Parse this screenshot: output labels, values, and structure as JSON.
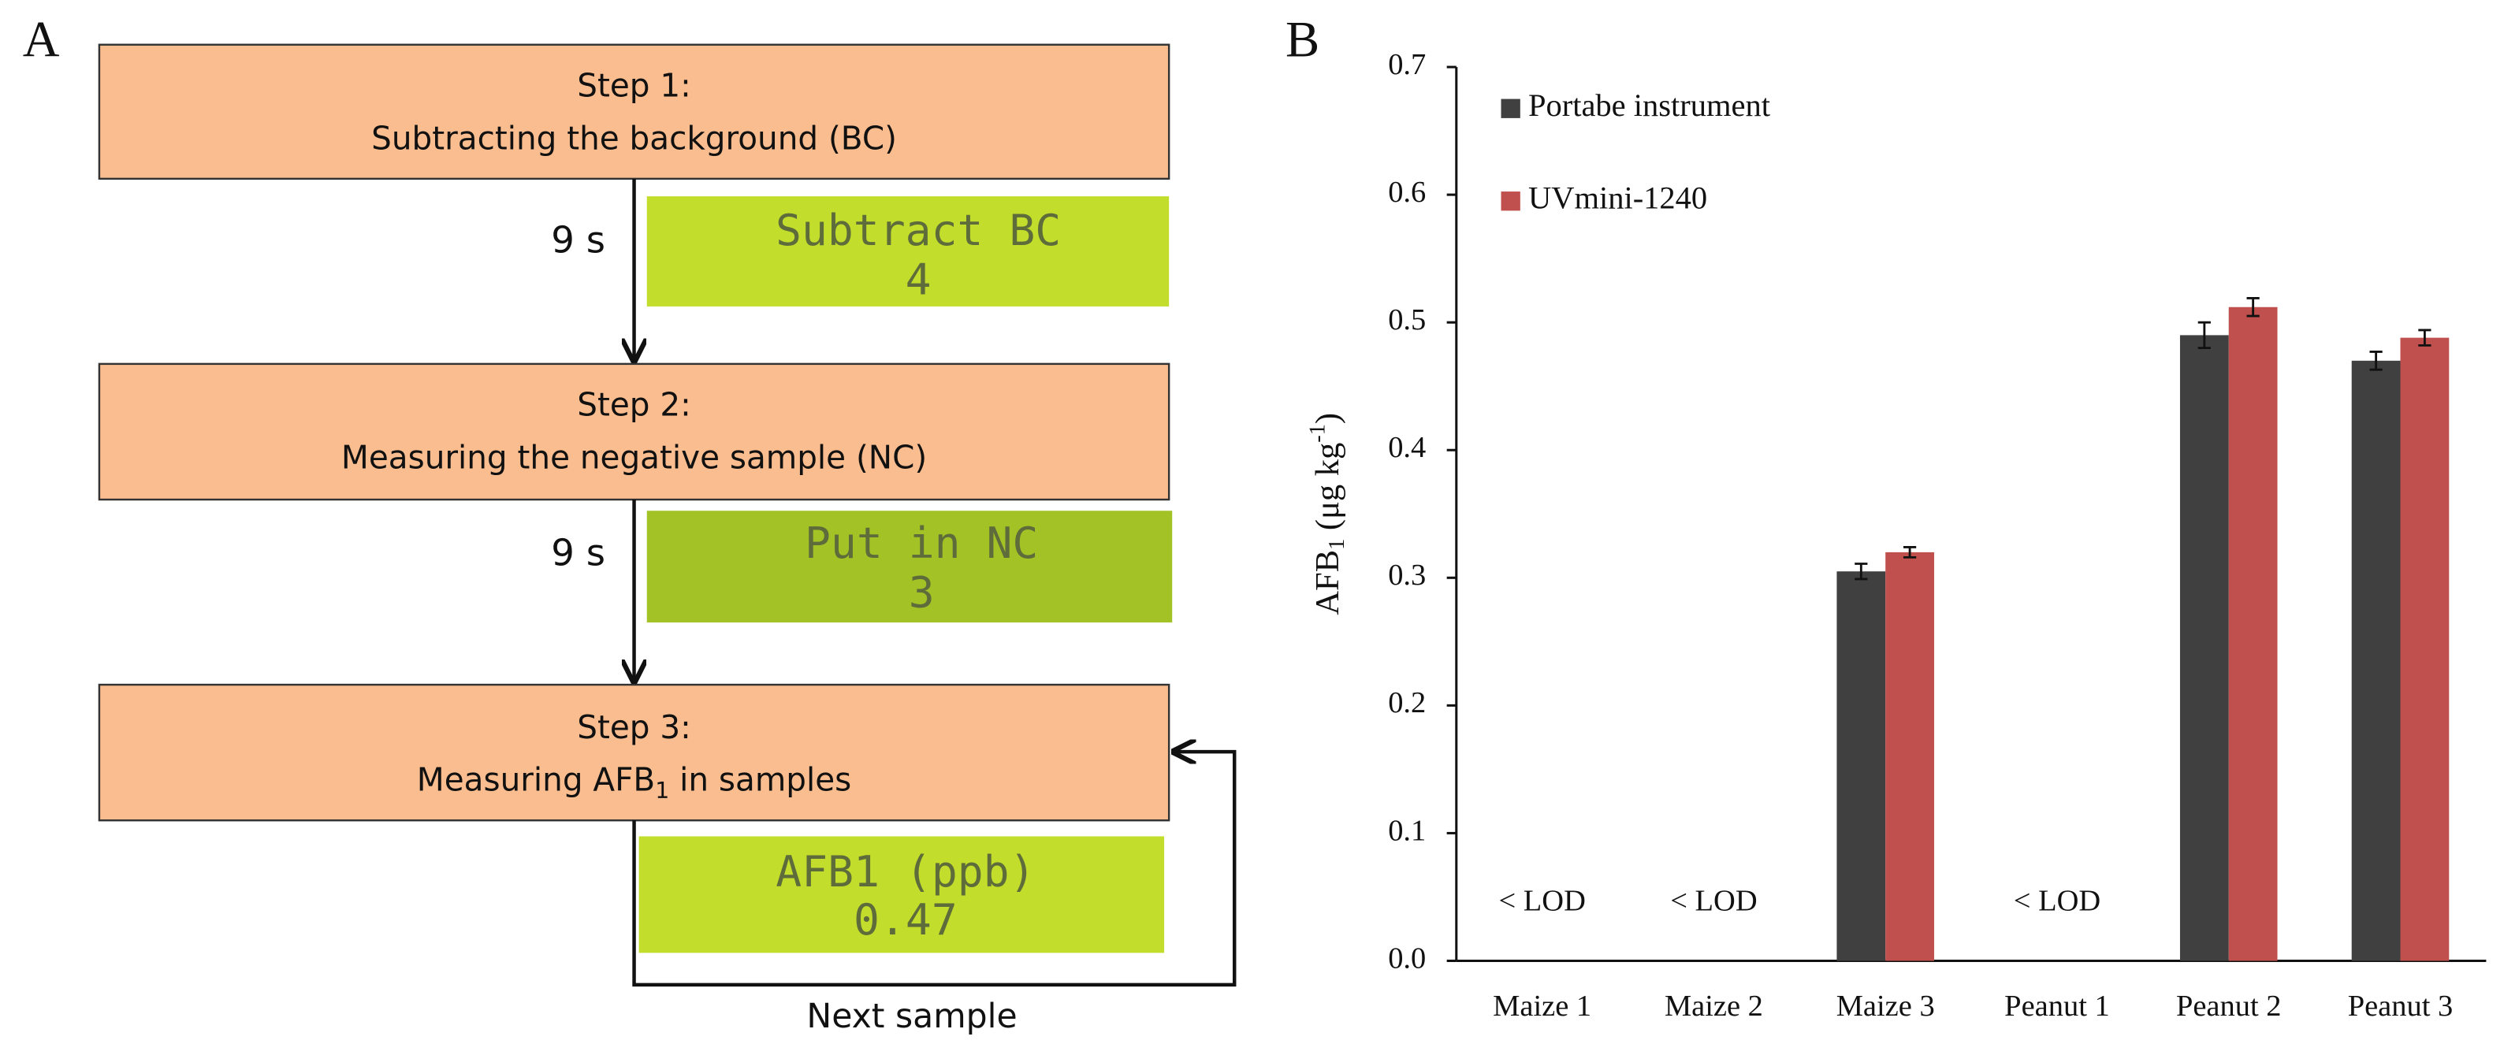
{
  "panel_a": {
    "label": "A",
    "steps": [
      {
        "title": "Step 1:",
        "text": [
          "Subtracting the background (BC)"
        ]
      },
      {
        "title": "Step 2:",
        "text": [
          "Measuring the negative sample (NC)"
        ]
      },
      {
        "title": "Step 3:",
        "text": [
          "Measuring AFB",
          "1",
          " in samples"
        ]
      }
    ],
    "displays": [
      [
        "Subtract BC",
        "4"
      ],
      [
        "Put in NC",
        "3"
      ],
      [
        "AFB1 (ppb)",
        "0.47"
      ]
    ],
    "durations": [
      "9 s",
      "9 s"
    ],
    "loop_label": "Next sample"
  },
  "chart_data": {
    "type": "bar",
    "panel_label": "B",
    "ylabel": [
      "AFB",
      "1",
      " (μg kg",
      "-1",
      ")"
    ],
    "categories": [
      "Maize 1",
      "Maize 2",
      "Maize 3",
      "Peanut 1",
      "Peanut 2",
      "Peanut 3"
    ],
    "series": [
      {
        "name": "Portabe instrument",
        "color": "#404040",
        "values": [
          null,
          null,
          0.305,
          null,
          0.49,
          0.47
        ],
        "errors": [
          null,
          null,
          0.006,
          null,
          0.01,
          0.007
        ]
      },
      {
        "name": "UVmini-1240",
        "color": "#c0504d",
        "values": [
          null,
          null,
          0.32,
          null,
          0.512,
          0.488
        ],
        "errors": [
          null,
          null,
          0.004,
          null,
          0.007,
          0.006
        ]
      }
    ],
    "annotations": [
      {
        "text": "< LOD",
        "category": "Maize 1"
      },
      {
        "text": "< LOD",
        "category": "Maize 2"
      },
      {
        "text": "< LOD",
        "category": "Peanut 1"
      }
    ],
    "ylim": [
      0,
      0.7
    ],
    "yticks": [
      {
        "value": 0,
        "label": "0.0"
      },
      0.1,
      0.2,
      0.3,
      0.4,
      0.5,
      0.6,
      0.7
    ],
    "legend": "top-left"
  }
}
